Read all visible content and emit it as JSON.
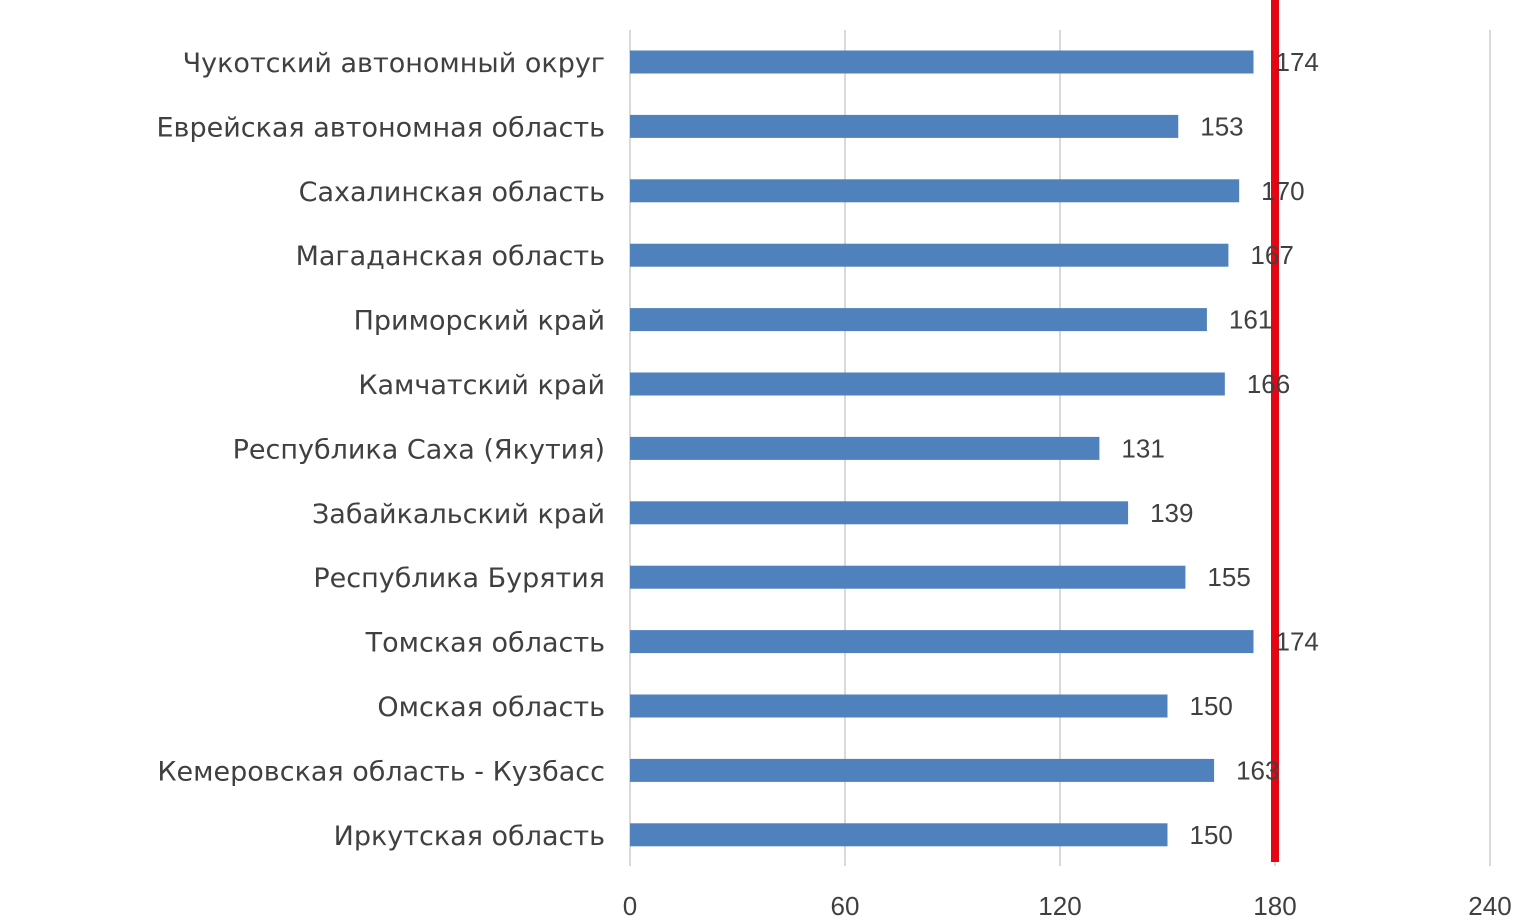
{
  "chart_data": {
    "type": "bar",
    "orientation": "horizontal",
    "title": "",
    "xlabel": "",
    "ylabel": "",
    "categories": [
      "Чукотский автономный округ",
      "Еврейская автономная область",
      "Сахалинская область",
      "Магаданская область",
      "Приморский край",
      "Камчатский край",
      "Республика Саха (Якутия)",
      "Забайкальский край",
      "Республика Бурятия",
      "Томская область",
      "Омская область",
      "Кемеровская область - Кузбасс",
      "Иркутская область"
    ],
    "values": [
      174,
      153,
      170,
      167,
      161,
      166,
      131,
      139,
      155,
      174,
      150,
      163,
      150
    ],
    "value_labels": [
      "174",
      "153",
      "170",
      "167",
      "161",
      "166",
      "131",
      "139",
      "155",
      "174",
      "150",
      "163",
      "150"
    ],
    "xlim": [
      0,
      240
    ],
    "xticks": [
      0,
      60,
      120,
      180,
      240
    ],
    "xtick_labels": [
      "0",
      "60",
      "120",
      "180",
      "240"
    ],
    "grid": "vertical",
    "legend": "none",
    "reference_line": {
      "x": 180,
      "color": "#e30613"
    },
    "colors": {
      "bar": "#4f81bd",
      "grid": "#d9d9d9",
      "text": "#404040"
    }
  }
}
